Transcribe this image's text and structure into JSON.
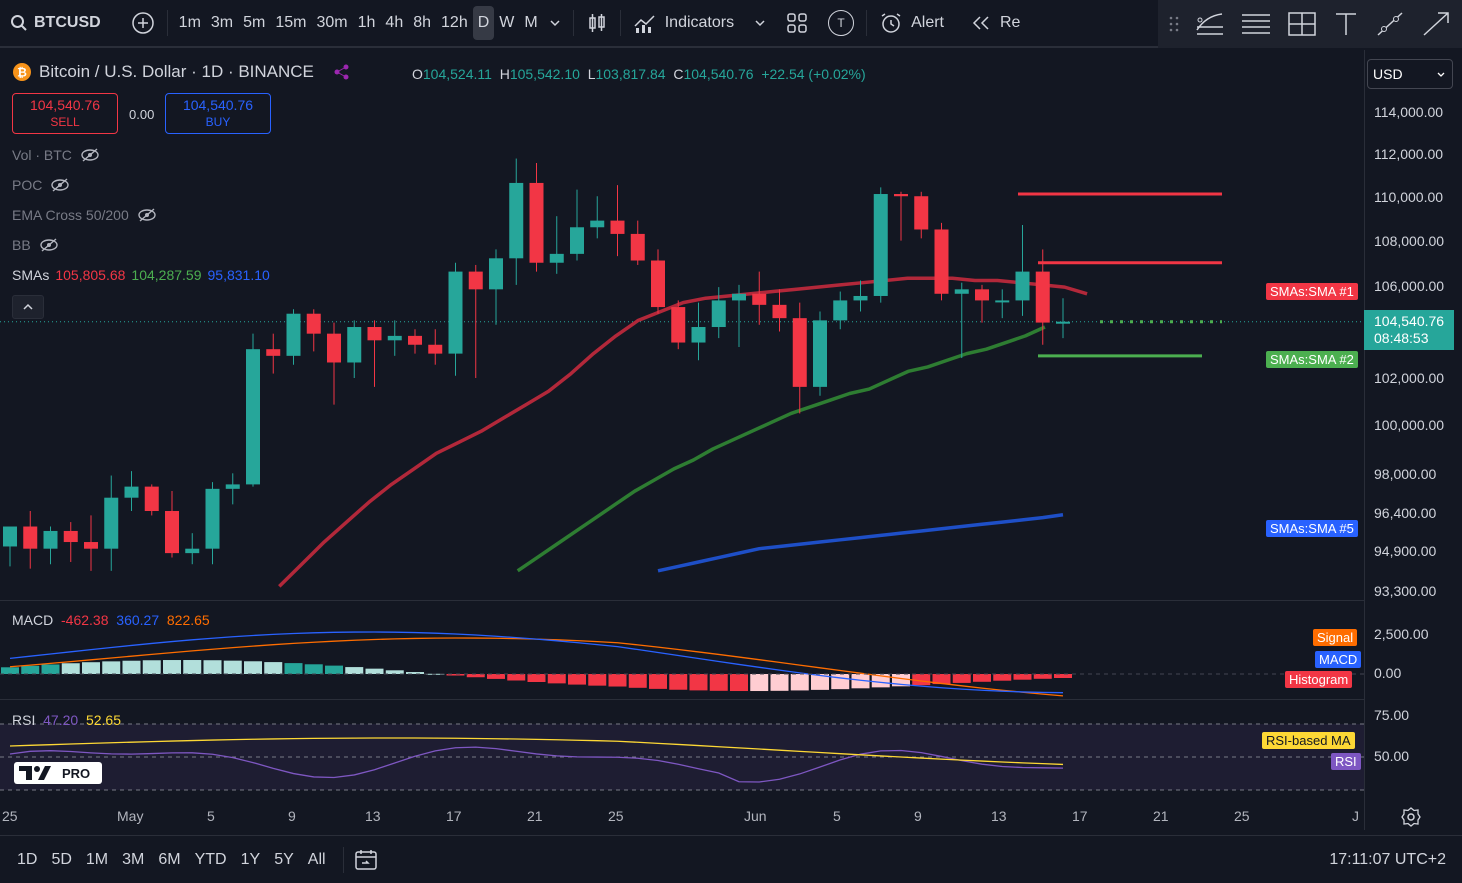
{
  "toolbar": {
    "symbol": "BTCUSD",
    "timeframes": [
      "1m",
      "3m",
      "5m",
      "15m",
      "30m",
      "1h",
      "4h",
      "8h",
      "12h",
      "D",
      "W",
      "M"
    ],
    "active_timeframe": "D",
    "indicators_label": "Indicators",
    "alert_label": "Alert",
    "replay_label": "Re",
    "template_badge": "T"
  },
  "legend": {
    "title": "Bitcoin / U.S. Dollar · 1D · BINANCE",
    "o_label": "O",
    "o": "104,524.11",
    "h_label": "H",
    "h": "105,542.10",
    "l_label": "L",
    "l": "103,817.84",
    "c_label": "C",
    "c": "104,540.76",
    "change": "+22.54 (+0.02%)"
  },
  "trade": {
    "sell_price": "104,540.76",
    "sell_label": "SELL",
    "spread": "0.00",
    "buy_price": "104,540.76",
    "buy_label": "BUY"
  },
  "indicators": {
    "vol": "Vol · BTC",
    "poc": "POC",
    "ema": "EMA Cross 50/200",
    "bb": "BB",
    "sma_label": "SMAs",
    "sma1": "105,805.68",
    "sma2": "104,287.59",
    "sma5": "95,831.10"
  },
  "price_axis": {
    "currency": "USD",
    "labels": [
      "114,000.00",
      "112,000.00",
      "110,000.00",
      "108,000.00",
      "106,000.00",
      "102,000.00",
      "100,000.00",
      "98,000.00",
      "96,400.00",
      "94,900.00",
      "93,300.00"
    ],
    "current_price": "104,540.76",
    "countdown": "08:48:53",
    "tag_sma1": "SMAs:SMA #1",
    "tag_sma2": "SMAs:SMA #2",
    "tag_sma5": "SMAs:SMA #5"
  },
  "macd": {
    "label": "MACD",
    "hist": "-462.38",
    "macd": "360.27",
    "signal": "822.65",
    "axis": [
      "2,500.00",
      "0.00"
    ],
    "tag_signal": "Signal",
    "tag_macd": "MACD",
    "tag_hist": "Histogram"
  },
  "rsi": {
    "label": "RSI",
    "rsi": "47.20",
    "ma": "52.65",
    "axis": [
      "75.00",
      "50.00"
    ],
    "tag_ma": "RSI-based MA",
    "tag_rsi": "RSI"
  },
  "watermark": "PRO",
  "time_axis": [
    "25",
    "May",
    "5",
    "9",
    "13",
    "17",
    "21",
    "25",
    "Jun",
    "5",
    "9",
    "13",
    "17",
    "21",
    "25",
    "J"
  ],
  "bottom": {
    "ranges": [
      "1D",
      "5D",
      "1M",
      "3M",
      "6M",
      "YTD",
      "1Y",
      "5Y",
      "All"
    ],
    "clock": "17:11:07 UTC+2"
  },
  "colors": {
    "up": "#26a69a",
    "down": "#f23645",
    "sma1": "#b2283a",
    "sma2": "#2e7d32",
    "sma5": "#1e4fc7"
  },
  "chart_data": {
    "type": "candlestick",
    "candles": [
      {
        "o": 94400,
        "h": 95200,
        "l": 93500,
        "c": 95300
      },
      {
        "o": 95300,
        "h": 96000,
        "l": 93400,
        "c": 94300
      },
      {
        "o": 94300,
        "h": 95300,
        "l": 93600,
        "c": 95100
      },
      {
        "o": 95100,
        "h": 95500,
        "l": 93700,
        "c": 94600
      },
      {
        "o": 94600,
        "h": 95800,
        "l": 93300,
        "c": 94300
      },
      {
        "o": 94300,
        "h": 97600,
        "l": 93300,
        "c": 96600
      },
      {
        "o": 96600,
        "h": 97800,
        "l": 96000,
        "c": 97100
      },
      {
        "o": 97100,
        "h": 97200,
        "l": 95800,
        "c": 96000
      },
      {
        "o": 96000,
        "h": 96900,
        "l": 93900,
        "c": 94100
      },
      {
        "o": 94100,
        "h": 95000,
        "l": 93600,
        "c": 94300
      },
      {
        "o": 94300,
        "h": 97300,
        "l": 93600,
        "c": 97000
      },
      {
        "o": 97000,
        "h": 97700,
        "l": 96300,
        "c": 97200
      },
      {
        "o": 97200,
        "h": 104000,
        "l": 97100,
        "c": 103300
      },
      {
        "o": 103300,
        "h": 104000,
        "l": 102200,
        "c": 103000
      },
      {
        "o": 103000,
        "h": 105100,
        "l": 102600,
        "c": 104900
      },
      {
        "o": 104900,
        "h": 105100,
        "l": 103200,
        "c": 104000
      },
      {
        "o": 104000,
        "h": 104500,
        "l": 100800,
        "c": 102700
      },
      {
        "o": 102700,
        "h": 104600,
        "l": 102000,
        "c": 104300
      },
      {
        "o": 104300,
        "h": 104600,
        "l": 101600,
        "c": 103700
      },
      {
        "o": 103700,
        "h": 104600,
        "l": 103000,
        "c": 103900
      },
      {
        "o": 103900,
        "h": 104200,
        "l": 103100,
        "c": 103500
      },
      {
        "o": 103500,
        "h": 104200,
        "l": 102600,
        "c": 103100
      },
      {
        "o": 103100,
        "h": 107200,
        "l": 102100,
        "c": 106800
      },
      {
        "o": 106800,
        "h": 107100,
        "l": 102000,
        "c": 106000
      },
      {
        "o": 106000,
        "h": 107800,
        "l": 104400,
        "c": 107400
      },
      {
        "o": 107400,
        "h": 111900,
        "l": 106200,
        "c": 110800
      },
      {
        "o": 110800,
        "h": 111700,
        "l": 106800,
        "c": 107200
      },
      {
        "o": 107200,
        "h": 109300,
        "l": 106700,
        "c": 107600
      },
      {
        "o": 107600,
        "h": 110500,
        "l": 107300,
        "c": 108800
      },
      {
        "o": 108800,
        "h": 110200,
        "l": 108300,
        "c": 109100
      },
      {
        "o": 109100,
        "h": 110700,
        "l": 107500,
        "c": 108500
      },
      {
        "o": 108500,
        "h": 109100,
        "l": 107100,
        "c": 107300
      },
      {
        "o": 107300,
        "h": 107800,
        "l": 104900,
        "c": 105200
      },
      {
        "o": 105200,
        "h": 105500,
        "l": 103300,
        "c": 103600
      },
      {
        "o": 103600,
        "h": 105400,
        "l": 102800,
        "c": 104300
      },
      {
        "o": 104300,
        "h": 106100,
        "l": 103800,
        "c": 105500
      },
      {
        "o": 105500,
        "h": 106200,
        "l": 103400,
        "c": 105800
      },
      {
        "o": 105800,
        "h": 106800,
        "l": 104400,
        "c": 105300
      },
      {
        "o": 105300,
        "h": 106000,
        "l": 104100,
        "c": 104700
      },
      {
        "o": 104700,
        "h": 105400,
        "l": 100400,
        "c": 101600
      },
      {
        "o": 101600,
        "h": 105000,
        "l": 101200,
        "c": 104600
      },
      {
        "o": 104600,
        "h": 105900,
        "l": 104200,
        "c": 105500
      },
      {
        "o": 105500,
        "h": 106400,
        "l": 105000,
        "c": 105700
      },
      {
        "o": 105700,
        "h": 110600,
        "l": 105400,
        "c": 110300
      },
      {
        "o": 110300,
        "h": 110400,
        "l": 108200,
        "c": 110200
      },
      {
        "o": 110200,
        "h": 110400,
        "l": 108300,
        "c": 108700
      },
      {
        "o": 108700,
        "h": 109000,
        "l": 105500,
        "c": 105800
      },
      {
        "o": 105800,
        "h": 106300,
        "l": 102900,
        "c": 106000
      },
      {
        "o": 106000,
        "h": 106200,
        "l": 104500,
        "c": 105500
      },
      {
        "o": 105500,
        "h": 106000,
        "l": 104700,
        "c": 105500
      },
      {
        "o": 105500,
        "h": 108900,
        "l": 104800,
        "c": 106800
      },
      {
        "o": 106800,
        "h": 107800,
        "l": 103500,
        "c": 104500
      },
      {
        "o": 104500,
        "h": 105600,
        "l": 103800,
        "c": 104540
      }
    ],
    "sma1": [
      92600,
      93600,
      94600,
      95500,
      96400,
      97200,
      97900,
      98600,
      99100,
      99600,
      100200,
      100800,
      101400,
      102200,
      103100,
      103900,
      104600,
      105000,
      105400,
      105600,
      105700,
      105800,
      105900,
      106000,
      106100,
      106200,
      106300,
      106400,
      106500,
      106500,
      106500,
      106400,
      106400,
      106300,
      106200,
      106100,
      105800
    ],
    "sma2": [
      93300,
      93900,
      94500,
      95100,
      95700,
      96300,
      96900,
      97400,
      97900,
      98300,
      98800,
      99200,
      99600,
      100000,
      100400,
      100700,
      101000,
      101300,
      101500,
      101900,
      102300,
      102500,
      102800,
      103100,
      103300,
      103600,
      103900,
      104300
    ],
    "sma5": [
      93300,
      93500,
      93700,
      93900,
      94100,
      94300,
      94400,
      94500,
      94600,
      94700,
      94800,
      94900,
      95000,
      95100,
      95200,
      95300,
      95400,
      95500,
      95600,
      95700,
      95831
    ],
    "lines": [
      {
        "name": "SMAs:SMA #1",
        "price": 106300
      },
      {
        "name": "SMAs:SMA #1 upper",
        "price": 110300
      },
      {
        "name": "SMAs:SMA #1 mid",
        "price": 107200
      },
      {
        "name": "SMAs:SMA #2",
        "price": 103000
      }
    ],
    "ylim": [
      93000,
      115000
    ]
  }
}
